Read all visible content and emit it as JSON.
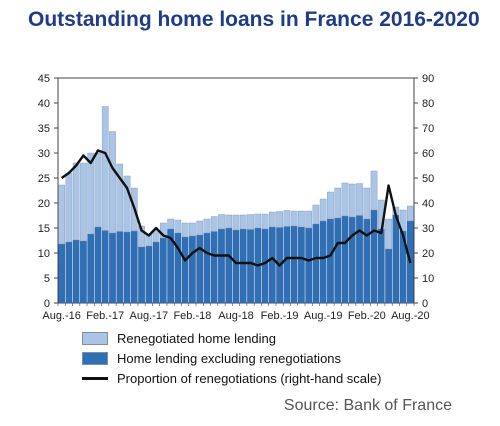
{
  "page": {
    "title": "Outstanding home loans in France 2016-2020",
    "source": "Source: Bank of France"
  },
  "colors": {
    "renegotiated": "#a9c4e4",
    "excluding": "#2f6fb6",
    "line": "#111111",
    "title": "#1f3c88"
  },
  "chart_data": {
    "type": "bar",
    "stacked": true,
    "title": "Outstanding home loans in France 2016-2020",
    "x_tick_labels": [
      "Aug.-16",
      "Feb.-17",
      "Aug.-17",
      "Feb.-18",
      "Aug-18",
      "Feb.-19",
      "Aug.-19",
      "Feb.-20",
      "Aug.-20"
    ],
    "x_tick_indices": [
      0,
      6,
      12,
      18,
      24,
      30,
      36,
      42,
      48
    ],
    "left_axis": {
      "min": 0,
      "max": 45,
      "ticks": [
        0,
        5,
        10,
        15,
        20,
        25,
        30,
        35,
        40,
        45
      ]
    },
    "right_axis": {
      "min": 0,
      "max": 90,
      "ticks": [
        0,
        10,
        20,
        30,
        40,
        50,
        60,
        70,
        80,
        90
      ]
    },
    "grid": false,
    "legend_position": "bottom",
    "series": [
      {
        "name": "Home lending excluding renegotiations",
        "axis": "left",
        "role": "bar-bottom",
        "values": [
          11.8,
          12.2,
          12.6,
          12.4,
          13.8,
          15.2,
          14.5,
          14.0,
          14.3,
          14.2,
          14.4,
          11.2,
          11.4,
          12.2,
          13.0,
          14.8,
          14.0,
          13.2,
          13.4,
          13.6,
          14.0,
          14.3,
          14.8,
          15.0,
          14.6,
          14.8,
          14.7,
          15.0,
          14.8,
          15.2,
          15.1,
          15.3,
          15.4,
          15.2,
          15.0,
          15.8,
          16.4,
          16.8,
          17.0,
          17.4,
          17.2,
          17.5,
          16.8,
          18.6,
          14.8,
          10.8,
          17.6,
          14.4,
          16.4
        ]
      },
      {
        "name": "Renegotiated home lending",
        "axis": "left",
        "role": "bar-top",
        "values": [
          11.8,
          13.8,
          15.4,
          15.6,
          16.2,
          14.8,
          24.8,
          20.3,
          13.5,
          11.2,
          8.6,
          4.2,
          2.4,
          2.5,
          3.0,
          2.0,
          2.6,
          2.8,
          2.6,
          2.8,
          2.8,
          3.0,
          2.9,
          2.6,
          3.0,
          2.8,
          3.0,
          2.8,
          3.0,
          3.0,
          3.2,
          3.2,
          3.0,
          3.2,
          3.4,
          3.8,
          4.4,
          5.4,
          6.0,
          6.6,
          6.6,
          6.4,
          6.2,
          7.8,
          5.8,
          6.0,
          1.6,
          4.2,
          3.0
        ]
      },
      {
        "name": "Proportion of renegotiations (right-hand scale)",
        "axis": "right",
        "role": "line",
        "values": [
          50,
          52,
          55,
          59,
          56,
          61,
          60,
          54,
          50,
          46,
          38,
          29,
          27,
          30,
          27,
          26,
          22,
          17,
          20,
          22,
          20,
          19,
          19,
          19,
          16,
          16,
          16,
          15,
          16,
          18,
          15,
          18,
          18,
          18,
          17,
          18,
          18,
          19,
          24,
          24,
          27,
          29,
          27,
          29,
          28,
          47,
          35,
          27,
          16
        ]
      }
    ]
  }
}
